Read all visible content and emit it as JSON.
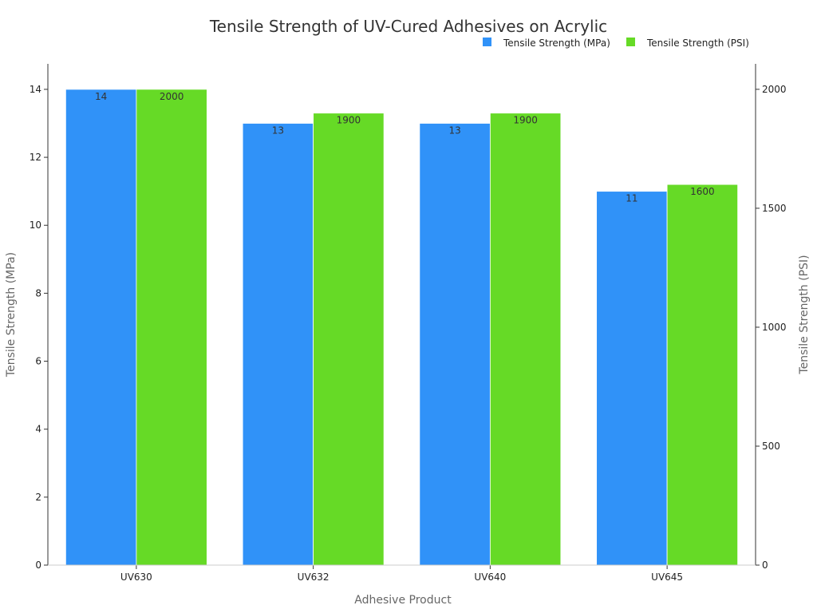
{
  "chart_data": {
    "type": "bar",
    "title": "Tensile Strength of UV-Cured Adhesives on Acrylic",
    "xlabel": "Adhesive Product",
    "ylabel": "Tensile Strength (MPa)",
    "y2label": "Tensile Strength (PSI)",
    "categories": [
      "UV630",
      "UV632",
      "UV640",
      "UV645"
    ],
    "series": [
      {
        "name": "Tensile Strength (MPa)",
        "axis": "left",
        "color": "#3092F8",
        "values": [
          14,
          13,
          13,
          11
        ],
        "labels": [
          "14",
          "13",
          "13",
          "11"
        ]
      },
      {
        "name": "Tensile Strength (PSI)",
        "axis": "right",
        "color": "#66DA26",
        "values": [
          2000,
          1900,
          1900,
          1600
        ],
        "labels": [
          "2000",
          "1900",
          "1900",
          "1600"
        ]
      }
    ],
    "ylim": [
      0,
      14.75
    ],
    "y2lim": [
      0,
      2107
    ],
    "yticks": [
      "0",
      "2",
      "4",
      "6",
      "8",
      "10",
      "12",
      "14"
    ],
    "y2ticks": [
      "0",
      "500",
      "1000",
      "1500",
      "2000"
    ],
    "legend": "top-right",
    "grid": false
  }
}
